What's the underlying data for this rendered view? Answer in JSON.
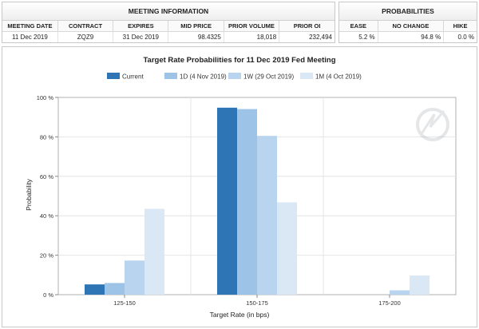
{
  "meeting_info": {
    "header": "MEETING INFORMATION",
    "columns": [
      "MEETING DATE",
      "CONTRACT",
      "EXPIRES",
      "MID PRICE",
      "PRIOR VOLUME",
      "PRIOR OI"
    ],
    "row": [
      "11 Dec 2019",
      "ZQZ9",
      "31 Dec 2019",
      "98.4325",
      "18,018",
      "232,494"
    ]
  },
  "probabilities": {
    "header": "PROBABILITIES",
    "columns": [
      "EASE",
      "NO CHANGE",
      "HIKE"
    ],
    "row": [
      "5.2 %",
      "94.8 %",
      "0.0 %"
    ]
  },
  "chart_data": {
    "type": "bar",
    "title": "Target Rate Probabilities for 11 Dec 2019 Fed Meeting",
    "xlabel": "Target Rate (in bps)",
    "ylabel": "Probability",
    "categories": [
      "125-150",
      "150-175",
      "175-200"
    ],
    "series": [
      {
        "name": "Current",
        "color": "#2e75b6",
        "values": [
          5.2,
          94.8,
          0.0
        ]
      },
      {
        "name": "1D (4 Nov 2019)",
        "color": "#9dc3e6",
        "values": [
          5.9,
          94.1,
          0.0
        ]
      },
      {
        "name": "1W (29 Oct 2019)",
        "color": "#b8d4ee",
        "values": [
          17.3,
          80.5,
          2.2
        ]
      },
      {
        "name": "1M (4 Oct 2019)",
        "color": "#dae8f6",
        "values": [
          43.5,
          46.8,
          9.7
        ]
      }
    ],
    "yticks": [
      "0 %",
      "20 %",
      "40 %",
      "60 %",
      "80 %",
      "100 %"
    ],
    "ylim": [
      0,
      100
    ],
    "grid": true,
    "legend": "top"
  }
}
